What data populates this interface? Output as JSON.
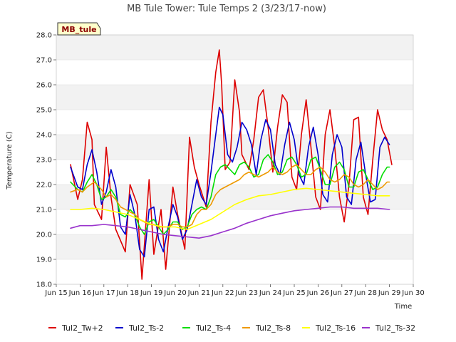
{
  "chart_data": {
    "type": "line",
    "title": "MB Tule Tower: Tule Temps 2 (3/23/17-now)",
    "xlabel": "Time",
    "ylabel": "Temperature (C)",
    "ylim": [
      18.0,
      28.0
    ],
    "xlim": [
      15,
      30
    ],
    "yticks": [
      "18.0",
      "19.0",
      "20.0",
      "21.0",
      "22.0",
      "23.0",
      "24.0",
      "25.0",
      "26.0",
      "27.0",
      "28.0"
    ],
    "xticks": [
      "Jun 15",
      "Jun 16",
      "Jun 17",
      "Jun 18",
      "Jun 19",
      "Jun 20",
      "Jun 21",
      "Jun 22",
      "Jun 23",
      "Jun 24",
      "Jun 25",
      "Jun 26",
      "Jun 27",
      "Jun 28",
      "Jun 29",
      "Jun 30"
    ],
    "station_badge": "MB_tule",
    "series": [
      {
        "name": "Tul2_Tw+2",
        "color": "#dd0000",
        "x": [
          15.6,
          15.9,
          16.1,
          16.3,
          16.5,
          16.6,
          16.9,
          17.1,
          17.3,
          17.5,
          17.9,
          18.1,
          18.4,
          18.6,
          18.9,
          19.1,
          19.4,
          19.6,
          19.9,
          20.1,
          20.4,
          20.6,
          20.8,
          21.0,
          21.3,
          21.5,
          21.7,
          21.85,
          21.95,
          22.1,
          22.3,
          22.5,
          22.7,
          22.8,
          22.9,
          23.1,
          23.3,
          23.5,
          23.7,
          23.9,
          24.1,
          24.3,
          24.5,
          24.7,
          24.9,
          25.1,
          25.3,
          25.5,
          25.7,
          25.9,
          26.1,
          26.3,
          26.5,
          26.7,
          26.9,
          27.1,
          27.3,
          27.5,
          27.7,
          27.9,
          28.1,
          28.3,
          28.5,
          28.7,
          28.9,
          29.1
        ],
        "values": [
          22.8,
          21.4,
          22.2,
          24.5,
          23.8,
          21.2,
          20.6,
          23.5,
          21.5,
          20.2,
          19.3,
          22.0,
          21.2,
          18.2,
          22.2,
          19.2,
          21.0,
          18.6,
          21.9,
          20.8,
          19.4,
          23.9,
          22.7,
          22.0,
          21.1,
          24.5,
          26.5,
          27.4,
          26.0,
          22.6,
          22.9,
          26.2,
          24.9,
          23.2,
          23.0,
          22.6,
          23.8,
          25.5,
          25.8,
          24.3,
          22.5,
          24.3,
          25.6,
          25.3,
          22.3,
          21.8,
          24.0,
          25.4,
          23.5,
          21.5,
          21.0,
          24.0,
          25.0,
          23.5,
          21.5,
          20.5,
          22.0,
          24.6,
          24.7,
          21.5,
          20.8,
          23.0,
          25.0,
          24.2,
          23.8,
          22.8
        ]
      },
      {
        "name": "Tul2_Ts-2",
        "color": "#0000cc",
        "x": [
          15.6,
          15.9,
          16.1,
          16.3,
          16.5,
          16.7,
          16.9,
          17.1,
          17.3,
          17.5,
          17.7,
          17.9,
          18.1,
          18.3,
          18.5,
          18.7,
          18.9,
          19.1,
          19.3,
          19.5,
          19.7,
          19.9,
          20.1,
          20.3,
          20.5,
          20.7,
          20.9,
          21.1,
          21.3,
          21.5,
          21.7,
          21.85,
          22.0,
          22.2,
          22.4,
          22.6,
          22.8,
          23.0,
          23.2,
          23.4,
          23.6,
          23.8,
          24.0,
          24.2,
          24.4,
          24.6,
          24.8,
          25.0,
          25.2,
          25.4,
          25.6,
          25.8,
          26.0,
          26.2,
          26.4,
          26.6,
          26.8,
          27.0,
          27.2,
          27.4,
          27.6,
          27.8,
          28.0,
          28.2,
          28.4,
          28.6,
          28.8,
          29.0
        ],
        "values": [
          22.7,
          21.9,
          21.8,
          22.8,
          23.4,
          22.5,
          21.2,
          21.7,
          22.6,
          21.9,
          20.3,
          20.0,
          21.6,
          20.8,
          19.4,
          19.1,
          21.0,
          21.1,
          19.8,
          19.3,
          20.3,
          21.2,
          20.7,
          19.8,
          20.2,
          21.2,
          22.2,
          21.5,
          21.2,
          22.5,
          24.0,
          25.1,
          24.8,
          23.2,
          22.9,
          23.5,
          24.5,
          24.2,
          23.6,
          22.4,
          23.8,
          24.6,
          24.2,
          22.8,
          22.4,
          23.6,
          24.5,
          23.8,
          22.4,
          22.0,
          23.5,
          24.3,
          23.2,
          21.6,
          21.3,
          23.2,
          24.0,
          23.5,
          21.5,
          21.2,
          23.0,
          23.7,
          22.4,
          21.3,
          21.4,
          23.5,
          23.9,
          23.6
        ]
      },
      {
        "name": "Tul2_Ts-4",
        "color": "#00dd00",
        "x": [
          15.6,
          15.9,
          16.1,
          16.3,
          16.5,
          16.7,
          16.9,
          17.1,
          17.3,
          17.5,
          17.7,
          17.9,
          18.1,
          18.3,
          18.5,
          18.7,
          18.9,
          19.1,
          19.3,
          19.5,
          19.7,
          19.9,
          20.1,
          20.3,
          20.5,
          20.7,
          20.9,
          21.1,
          21.3,
          21.5,
          21.7,
          21.9,
          22.1,
          22.3,
          22.5,
          22.7,
          22.9,
          23.1,
          23.3,
          23.5,
          23.7,
          23.9,
          24.1,
          24.3,
          24.5,
          24.7,
          24.9,
          25.1,
          25.3,
          25.5,
          25.7,
          25.9,
          26.1,
          26.3,
          26.5,
          26.7,
          26.9,
          27.1,
          27.3,
          27.5,
          27.7,
          27.9,
          28.1,
          28.3,
          28.5,
          28.7,
          28.9,
          29.0
        ],
        "values": [
          22.1,
          21.8,
          21.7,
          22.1,
          22.4,
          22.0,
          21.4,
          21.5,
          21.8,
          21.5,
          20.8,
          20.7,
          21.0,
          20.8,
          20.3,
          20.0,
          20.5,
          20.6,
          20.3,
          20.0,
          20.2,
          20.5,
          20.5,
          20.2,
          20.3,
          20.8,
          21.0,
          21.1,
          21.0,
          21.5,
          22.4,
          22.7,
          22.8,
          22.6,
          22.4,
          22.8,
          22.9,
          22.7,
          22.3,
          22.4,
          23.0,
          23.2,
          22.9,
          22.4,
          22.5,
          23.0,
          23.1,
          22.8,
          22.3,
          22.4,
          23.0,
          23.1,
          22.6,
          22.0,
          22.0,
          22.7,
          22.9,
          22.6,
          21.9,
          21.9,
          22.5,
          22.6,
          22.2,
          21.8,
          21.9,
          22.4,
          22.7,
          22.7
        ]
      },
      {
        "name": "Tul2_Ts-8",
        "color": "#ee9900",
        "x": [
          15.6,
          15.9,
          16.1,
          16.3,
          16.6,
          16.9,
          17.1,
          17.3,
          17.5,
          17.7,
          17.9,
          18.1,
          18.3,
          18.5,
          18.7,
          18.9,
          19.1,
          19.3,
          19.5,
          19.7,
          19.9,
          20.1,
          20.3,
          20.5,
          20.7,
          20.9,
          21.1,
          21.3,
          21.5,
          21.7,
          21.9,
          22.1,
          22.3,
          22.5,
          22.7,
          22.9,
          23.1,
          23.3,
          23.5,
          23.7,
          23.9,
          24.1,
          24.3,
          24.5,
          24.7,
          24.9,
          25.1,
          25.3,
          25.5,
          25.7,
          25.9,
          26.1,
          26.3,
          26.5,
          26.7,
          26.9,
          27.1,
          27.3,
          27.5,
          27.7,
          27.9,
          28.1,
          28.3,
          28.5,
          28.7,
          28.9,
          29.0
        ],
        "values": [
          21.7,
          21.8,
          21.7,
          21.9,
          22.1,
          21.8,
          21.5,
          21.6,
          21.4,
          21.1,
          21.0,
          20.9,
          20.8,
          20.6,
          20.5,
          20.4,
          20.4,
          20.3,
          20.3,
          20.3,
          20.4,
          20.4,
          20.3,
          20.3,
          20.4,
          20.8,
          21.0,
          21.0,
          21.2,
          21.6,
          21.8,
          21.9,
          22.0,
          22.1,
          22.2,
          22.4,
          22.5,
          22.4,
          22.3,
          22.4,
          22.5,
          22.7,
          22.5,
          22.4,
          22.5,
          22.7,
          22.8,
          22.6,
          22.4,
          22.4,
          22.6,
          22.7,
          22.5,
          22.2,
          22.1,
          22.2,
          22.4,
          22.3,
          22.0,
          21.9,
          22.0,
          22.2,
          22.0,
          21.8,
          21.9,
          22.1,
          22.1
        ]
      },
      {
        "name": "Tul2_Ts-16",
        "color": "#ffff00",
        "x": [
          15.6,
          16.0,
          16.5,
          17.0,
          17.5,
          18.0,
          18.5,
          19.0,
          19.5,
          20.0,
          20.5,
          21.0,
          21.5,
          22.0,
          22.5,
          23.0,
          23.5,
          24.0,
          24.5,
          25.0,
          25.5,
          26.0,
          26.5,
          27.0,
          27.5,
          28.0,
          28.5,
          29.0
        ],
        "values": [
          21.0,
          21.0,
          21.05,
          21.0,
          20.9,
          20.8,
          20.6,
          20.4,
          20.3,
          20.3,
          20.2,
          20.4,
          20.6,
          20.9,
          21.2,
          21.4,
          21.55,
          21.6,
          21.7,
          21.8,
          21.85,
          21.8,
          21.75,
          21.7,
          21.65,
          21.6,
          21.55,
          21.55
        ]
      },
      {
        "name": "Tul2_Ts-32",
        "color": "#9933cc",
        "x": [
          15.6,
          16.0,
          16.5,
          17.0,
          17.5,
          18.0,
          18.5,
          19.0,
          19.5,
          20.0,
          20.5,
          21.0,
          21.5,
          22.0,
          22.5,
          23.0,
          23.5,
          24.0,
          24.5,
          25.0,
          25.5,
          26.0,
          26.5,
          27.0,
          27.5,
          28.0,
          28.5,
          29.0
        ],
        "values": [
          20.25,
          20.35,
          20.35,
          20.4,
          20.35,
          20.3,
          20.2,
          20.1,
          20.0,
          19.95,
          19.9,
          19.85,
          19.95,
          20.1,
          20.25,
          20.45,
          20.6,
          20.75,
          20.85,
          20.95,
          21.0,
          21.05,
          21.1,
          21.1,
          21.05,
          21.05,
          21.05,
          21.0
        ]
      }
    ]
  }
}
